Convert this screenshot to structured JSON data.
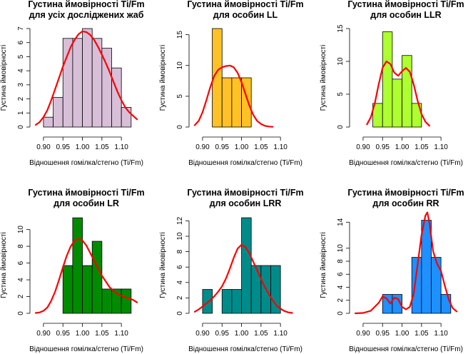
{
  "chart_data": [
    {
      "type": "histogram",
      "title": [
        "Густина ймовірності Ti/Fm",
        "для усіх досліджених жаб"
      ],
      "xlabel": "Відношення гомілка/стегно (Ti/Fm)",
      "ylabel": "Густина ймовірності",
      "xticks": [
        "0.90",
        "0.95",
        "1.00",
        "1.05",
        "1.10"
      ],
      "xlim": [
        0.88,
        1.14
      ],
      "yticks": [
        "0",
        "1",
        "2",
        "3",
        "4",
        "5",
        "6",
        "7"
      ],
      "ylim": [
        0,
        7
      ],
      "bin_color": "#D8BFD8",
      "bins": [
        {
          "x0": 0.9,
          "x1": 0.925,
          "y": 0.7
        },
        {
          "x0": 0.925,
          "x1": 0.95,
          "y": 2.1
        },
        {
          "x0": 0.95,
          "x1": 0.975,
          "y": 6.3
        },
        {
          "x0": 0.975,
          "x1": 1.0,
          "y": 6.3
        },
        {
          "x0": 1.0,
          "x1": 1.025,
          "y": 7.0
        },
        {
          "x0": 1.025,
          "x1": 1.05,
          "y": 6.3
        },
        {
          "x0": 1.05,
          "x1": 1.075,
          "y": 5.6
        },
        {
          "x0": 1.075,
          "x1": 1.1,
          "y": 4.2
        },
        {
          "x0": 1.1,
          "x1": 1.125,
          "y": 1.4
        }
      ],
      "density": {
        "color": "#FF0000",
        "x": [
          0.88,
          0.89,
          0.9,
          0.91,
          0.92,
          0.93,
          0.94,
          0.95,
          0.96,
          0.97,
          0.98,
          0.99,
          1.0,
          1.01,
          1.02,
          1.03,
          1.04,
          1.05,
          1.06,
          1.07,
          1.08,
          1.09,
          1.1,
          1.11,
          1.12,
          1.13,
          1.14
        ],
        "y": [
          0.15,
          0.35,
          0.7,
          1.2,
          1.9,
          2.7,
          3.5,
          4.3,
          5.0,
          5.7,
          6.2,
          6.6,
          6.8,
          6.75,
          6.55,
          6.2,
          5.7,
          5.15,
          4.55,
          3.9,
          3.2,
          2.5,
          1.9,
          1.4,
          1.05,
          0.8,
          0.55
        ]
      }
    },
    {
      "type": "histogram",
      "title": [
        "Густина ймовірності Ti/Fm",
        "для особин LL"
      ],
      "xlabel": "Відношення гомілка/стегно (Ti/Fm)",
      "ylabel": "Густина ймовірності",
      "xticks": [
        "0.90",
        "0.95",
        "1.00",
        "1.05",
        "1.10"
      ],
      "xlim": [
        0.88,
        1.14
      ],
      "yticks": [
        "0",
        "5",
        "10",
        "15"
      ],
      "ylim": [
        0,
        16
      ],
      "bin_color": "#FFC125",
      "bins": [
        {
          "x0": 0.925,
          "x1": 0.95,
          "y": 16
        },
        {
          "x0": 0.95,
          "x1": 0.975,
          "y": 8
        },
        {
          "x0": 0.975,
          "x1": 1.0,
          "y": 8
        },
        {
          "x0": 1.0,
          "x1": 1.025,
          "y": 8
        }
      ],
      "density": {
        "color": "#FF0000",
        "x": [
          0.88,
          0.89,
          0.9,
          0.91,
          0.92,
          0.93,
          0.94,
          0.95,
          0.96,
          0.97,
          0.98,
          0.99,
          1.0,
          1.01,
          1.02,
          1.03,
          1.04,
          1.05,
          1.06,
          1.07,
          1.08
        ],
        "y": [
          0.3,
          1.0,
          2.4,
          4.4,
          6.5,
          8.3,
          9.3,
          9.7,
          9.9,
          10.0,
          9.7,
          8.8,
          7.3,
          5.4,
          3.5,
          2.0,
          1.0,
          0.5,
          0.2,
          0.08,
          0.03
        ]
      }
    },
    {
      "type": "histogram",
      "title": [
        "Густина ймовірності Ti/Fm",
        "для особин LLR"
      ],
      "xlabel": "Відношення гомілка/стегно (Ti/Fm)",
      "ylabel": "Густина ймовірності",
      "xticks": [
        "0.90",
        "0.95",
        "1.00",
        "1.05",
        "1.10"
      ],
      "xlim": [
        0.88,
        1.14
      ],
      "yticks": [
        "0",
        "5",
        "10",
        "15"
      ],
      "ylim": [
        0,
        15
      ],
      "bin_color": "#ADFF2F",
      "bins": [
        {
          "x0": 0.925,
          "x1": 0.95,
          "y": 3.6
        },
        {
          "x0": 0.95,
          "x1": 0.975,
          "y": 14.5
        },
        {
          "x0": 0.975,
          "x1": 1.0,
          "y": 7.3
        },
        {
          "x0": 1.0,
          "x1": 1.025,
          "y": 10.9
        },
        {
          "x0": 1.025,
          "x1": 1.05,
          "y": 3.6
        }
      ],
      "density": {
        "color": "#FF0000",
        "x": [
          0.91,
          0.92,
          0.93,
          0.94,
          0.95,
          0.96,
          0.97,
          0.98,
          0.99,
          1.0,
          1.01,
          1.02,
          1.03,
          1.04,
          1.05,
          1.06,
          1.07
        ],
        "y": [
          0.4,
          1.5,
          3.6,
          6.5,
          9.0,
          10.0,
          9.6,
          8.3,
          7.8,
          8.5,
          9.0,
          8.4,
          6.5,
          4.0,
          2.0,
          0.8,
          0.2
        ]
      }
    },
    {
      "type": "histogram",
      "title": [
        "Густина ймовірності Ti/Fm",
        "для особин LR"
      ],
      "xlabel": "Відношення гомілка/стегно (Ti/Fm)",
      "ylabel": "Густина ймовірності",
      "xticks": [
        "0.90",
        "0.95",
        "1.00",
        "1.05",
        "1.10"
      ],
      "xlim": [
        0.88,
        1.14
      ],
      "yticks": [
        "0",
        "2",
        "4",
        "6",
        "8",
        "10"
      ],
      "ylim": [
        0,
        11.5
      ],
      "bin_color": "#008B00",
      "bins": [
        {
          "x0": 0.95,
          "x1": 0.975,
          "y": 5.7
        },
        {
          "x0": 0.975,
          "x1": 1.0,
          "y": 11.4
        },
        {
          "x0": 1.0,
          "x1": 1.025,
          "y": 5.7
        },
        {
          "x0": 1.025,
          "x1": 1.05,
          "y": 8.6
        },
        {
          "x0": 1.05,
          "x1": 1.075,
          "y": 2.9
        },
        {
          "x0": 1.075,
          "x1": 1.1,
          "y": 2.9
        },
        {
          "x0": 1.1,
          "x1": 1.125,
          "y": 2.9
        }
      ],
      "density": {
        "color": "#FF0000",
        "x": [
          0.88,
          0.89,
          0.9,
          0.91,
          0.92,
          0.93,
          0.94,
          0.95,
          0.96,
          0.97,
          0.98,
          0.99,
          1.0,
          1.01,
          1.02,
          1.03,
          1.04,
          1.05,
          1.06,
          1.07,
          1.08,
          1.09,
          1.1,
          1.11,
          1.12,
          1.13,
          1.14
        ],
        "y": [
          0.04,
          0.1,
          0.3,
          0.7,
          1.5,
          2.6,
          4.0,
          5.5,
          6.9,
          8.0,
          8.7,
          8.9,
          8.7,
          8.1,
          7.2,
          6.3,
          5.4,
          4.5,
          3.8,
          3.1,
          2.7,
          2.3,
          2.1,
          1.9,
          1.8,
          1.6,
          1.3
        ]
      }
    },
    {
      "type": "histogram",
      "title": [
        "Густина ймовірності Ti/Fm",
        "для особин LRR"
      ],
      "xlabel": "Відношення гомілка/стегно (Ti/Fm)",
      "ylabel": "Густина ймовірності",
      "xticks": [
        "0.90",
        "0.95",
        "1.00",
        "1.05",
        "1.10"
      ],
      "xlim": [
        0.88,
        1.14
      ],
      "yticks": [
        "0",
        "2",
        "4",
        "6",
        "8",
        "10",
        "12"
      ],
      "ylim": [
        0,
        12.5
      ],
      "bin_color": "#008B8B",
      "bins": [
        {
          "x0": 0.9,
          "x1": 0.925,
          "y": 3.1
        },
        {
          "x0": 0.95,
          "x1": 0.975,
          "y": 3.1
        },
        {
          "x0": 0.975,
          "x1": 1.0,
          "y": 3.1
        },
        {
          "x0": 1.0,
          "x1": 1.025,
          "y": 12.4
        },
        {
          "x0": 1.025,
          "x1": 1.05,
          "y": 6.2
        },
        {
          "x0": 1.05,
          "x1": 1.075,
          "y": 6.2
        },
        {
          "x0": 1.075,
          "x1": 1.1,
          "y": 6.2
        }
      ],
      "density": {
        "color": "#FF0000",
        "x": [
          0.88,
          0.89,
          0.9,
          0.91,
          0.92,
          0.93,
          0.94,
          0.95,
          0.96,
          0.97,
          0.98,
          0.99,
          1.0,
          1.01,
          1.02,
          1.03,
          1.04,
          1.05,
          1.06,
          1.07,
          1.08,
          1.09,
          1.1,
          1.11,
          1.12,
          1.13
        ],
        "y": [
          0.2,
          0.5,
          0.9,
          1.3,
          1.7,
          2.2,
          2.8,
          3.5,
          4.5,
          5.8,
          7.2,
          8.4,
          8.9,
          8.6,
          7.8,
          6.7,
          5.6,
          4.5,
          3.4,
          2.5,
          1.7,
          1.0,
          0.6,
          0.3,
          0.12,
          0.05
        ]
      }
    },
    {
      "type": "histogram",
      "title": [
        "Густина ймовірності Ti/Fm",
        "для особин RR"
      ],
      "xlabel": "Відношення гомілка/стегно (Ti/Fm)",
      "ylabel": "Густина ймовірності",
      "xticks": [
        "0.90",
        "0.95",
        "1.00",
        "1.05",
        "1.10"
      ],
      "xlim": [
        0.88,
        1.14
      ],
      "yticks": [
        "0",
        "2",
        "4",
        "6",
        "8",
        "10",
        "14"
      ],
      "ylim": [
        0,
        14.8
      ],
      "bin_color": "#1E90FF",
      "bins": [
        {
          "x0": 0.95,
          "x1": 0.975,
          "y": 2.9
        },
        {
          "x0": 0.975,
          "x1": 1.0,
          "y": 2.9
        },
        {
          "x0": 1.025,
          "x1": 1.05,
          "y": 8.6
        },
        {
          "x0": 1.05,
          "x1": 1.075,
          "y": 14.3
        },
        {
          "x0": 1.075,
          "x1": 1.1,
          "y": 8.6
        },
        {
          "x0": 1.1,
          "x1": 1.125,
          "y": 2.9
        }
      ],
      "density": {
        "color": "#FF0000",
        "x": [
          0.88,
          0.9,
          0.92,
          0.94,
          0.95,
          0.96,
          0.97,
          0.98,
          0.99,
          1.0,
          1.01,
          1.02,
          1.03,
          1.04,
          1.05,
          1.06,
          1.065,
          1.07,
          1.08,
          1.09,
          1.1,
          1.11,
          1.12,
          1.13,
          1.14
        ],
        "y": [
          0.0,
          0.05,
          0.4,
          1.6,
          2.6,
          2.3,
          1.5,
          2.4,
          2.2,
          1.0,
          0.6,
          1.0,
          3.0,
          7.5,
          12.0,
          15.0,
          15.5,
          14.0,
          9.5,
          7.6,
          6.5,
          4.2,
          2.1,
          0.8,
          0.3
        ]
      }
    }
  ]
}
